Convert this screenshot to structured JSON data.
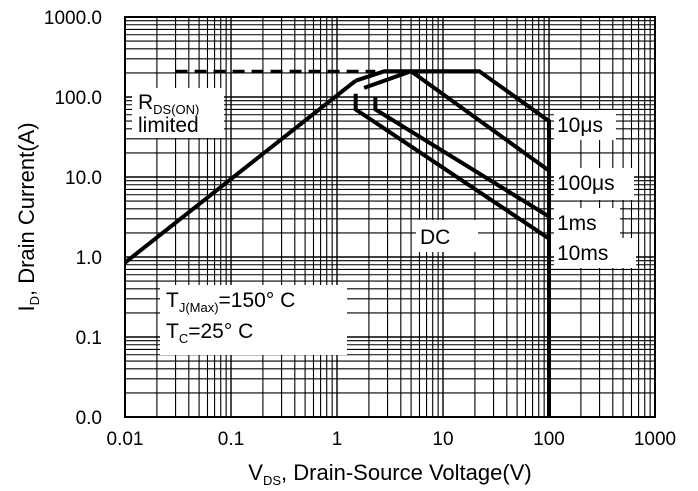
{
  "chart_data": {
    "type": "line",
    "x_scale": "log",
    "y_scale": "log",
    "grid": true,
    "xlim": [
      0.01,
      1000
    ],
    "ylim": [
      0.01,
      1000
    ],
    "x_ticks": [
      {
        "value": 0.01,
        "label": "0.01"
      },
      {
        "value": 0.1,
        "label": "0.1"
      },
      {
        "value": 1,
        "label": "1"
      },
      {
        "value": 10,
        "label": "10"
      },
      {
        "value": 100,
        "label": "100"
      },
      {
        "value": 1000,
        "label": "1000"
      }
    ],
    "y_ticks": [
      {
        "value": 0.01,
        "label": "0.0"
      },
      {
        "value": 0.1,
        "label": "0.1"
      },
      {
        "value": 1,
        "label": "1.0"
      },
      {
        "value": 10,
        "label": "10.0"
      },
      {
        "value": 100,
        "label": "100.0"
      },
      {
        "value": 1000,
        "label": "1000.0"
      }
    ],
    "xlabel": {
      "main": "V",
      "sub": "DS",
      "rest": ", Drain-Source Voltage(V)"
    },
    "ylabel": {
      "main": "I",
      "sub": "D",
      "rest": ", Drain Current(A)"
    },
    "annotations": {
      "rds": {
        "main": "R",
        "sub": "DS(ON)",
        "line2": "limited"
      },
      "tj": {
        "main": "T",
        "sub": "J(Max)",
        "rest": "=150° C"
      },
      "tc": {
        "main": "T",
        "sub": "C",
        "rest": "=25° C"
      }
    },
    "limit_line": {
      "style": "dashed",
      "points": [
        [
          0.03,
          210
        ],
        [
          2.3,
          210
        ]
      ]
    },
    "rds_line": {
      "points": [
        [
          0.01,
          0.85
        ],
        [
          1.5,
          160
        ]
      ]
    },
    "series": [
      {
        "name": "10μs",
        "points": [
          [
            1.5,
            160
          ],
          [
            2.8,
            210
          ],
          [
            22,
            210
          ],
          [
            100,
            50
          ],
          [
            100,
            0.01
          ]
        ]
      },
      {
        "name": "100μs",
        "points": [
          [
            1.8,
            130
          ],
          [
            5,
            210
          ],
          [
            100,
            12
          ]
        ]
      },
      {
        "name": "1ms",
        "points": [
          [
            2.3,
            100
          ],
          [
            2.3,
            70
          ],
          [
            100,
            3.2
          ]
        ]
      },
      {
        "name": "10ms",
        "points": [
          [
            1.5,
            110
          ],
          [
            1.5,
            70
          ],
          [
            100,
            1.7
          ]
        ]
      },
      {
        "name": "DC",
        "points": []
      }
    ]
  }
}
